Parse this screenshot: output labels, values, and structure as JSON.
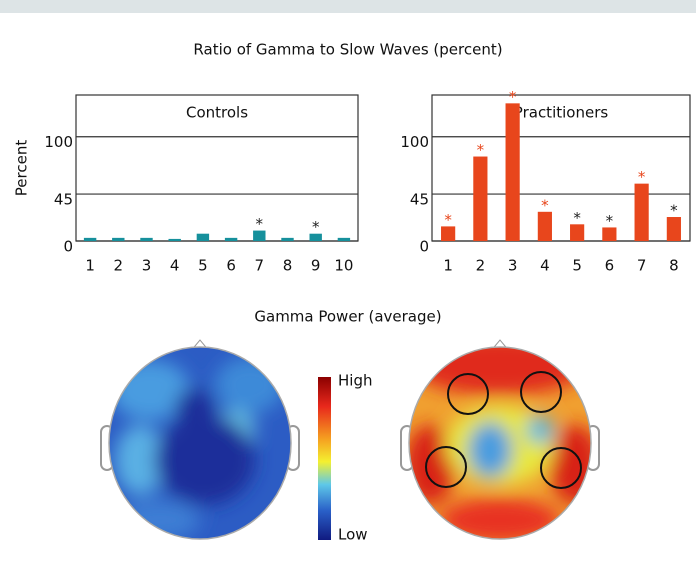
{
  "figure_title": "Ratio of Gamma to Slow Waves (percent)",
  "chart_data": [
    {
      "type": "bar",
      "title": "Controls",
      "y_label": "Percent",
      "categories": [
        "1",
        "2",
        "3",
        "4",
        "5",
        "6",
        "7",
        "8",
        "9",
        "10"
      ],
      "values": [
        3,
        3,
        3,
        2,
        7,
        3,
        10,
        3,
        7,
        3
      ],
      "color": "#16909c",
      "annotations": [
        null,
        null,
        null,
        null,
        null,
        null,
        "*",
        null,
        "*",
        null
      ],
      "annotation_colors": [
        null,
        null,
        null,
        null,
        null,
        null,
        "#222222",
        null,
        "#222222",
        null
      ],
      "ylim": [
        0,
        140
      ],
      "yticks": [
        0,
        45,
        100
      ],
      "grid": true
    },
    {
      "type": "bar",
      "title": "Practitioners",
      "categories": [
        "1",
        "2",
        "3",
        "4",
        "5",
        "6",
        "7",
        "8"
      ],
      "values": [
        14,
        81,
        132,
        28,
        16,
        13,
        55,
        23
      ],
      "color": "#e8461c",
      "annotations": [
        "*",
        "*",
        "*",
        "*",
        "*",
        "*",
        "*",
        "*"
      ],
      "annotation_colors": [
        "#e8461c",
        "#e8461c",
        "#e8461c",
        "#e8461c",
        "#222222",
        "#222222",
        "#e8461c",
        "#222222"
      ],
      "ylim": [
        0,
        140
      ],
      "yticks": [
        0,
        45,
        100
      ],
      "grid": true
    }
  ],
  "map_section": {
    "title": "Gamma Power (average)",
    "colorbar_high": "High",
    "colorbar_low": "Low"
  }
}
